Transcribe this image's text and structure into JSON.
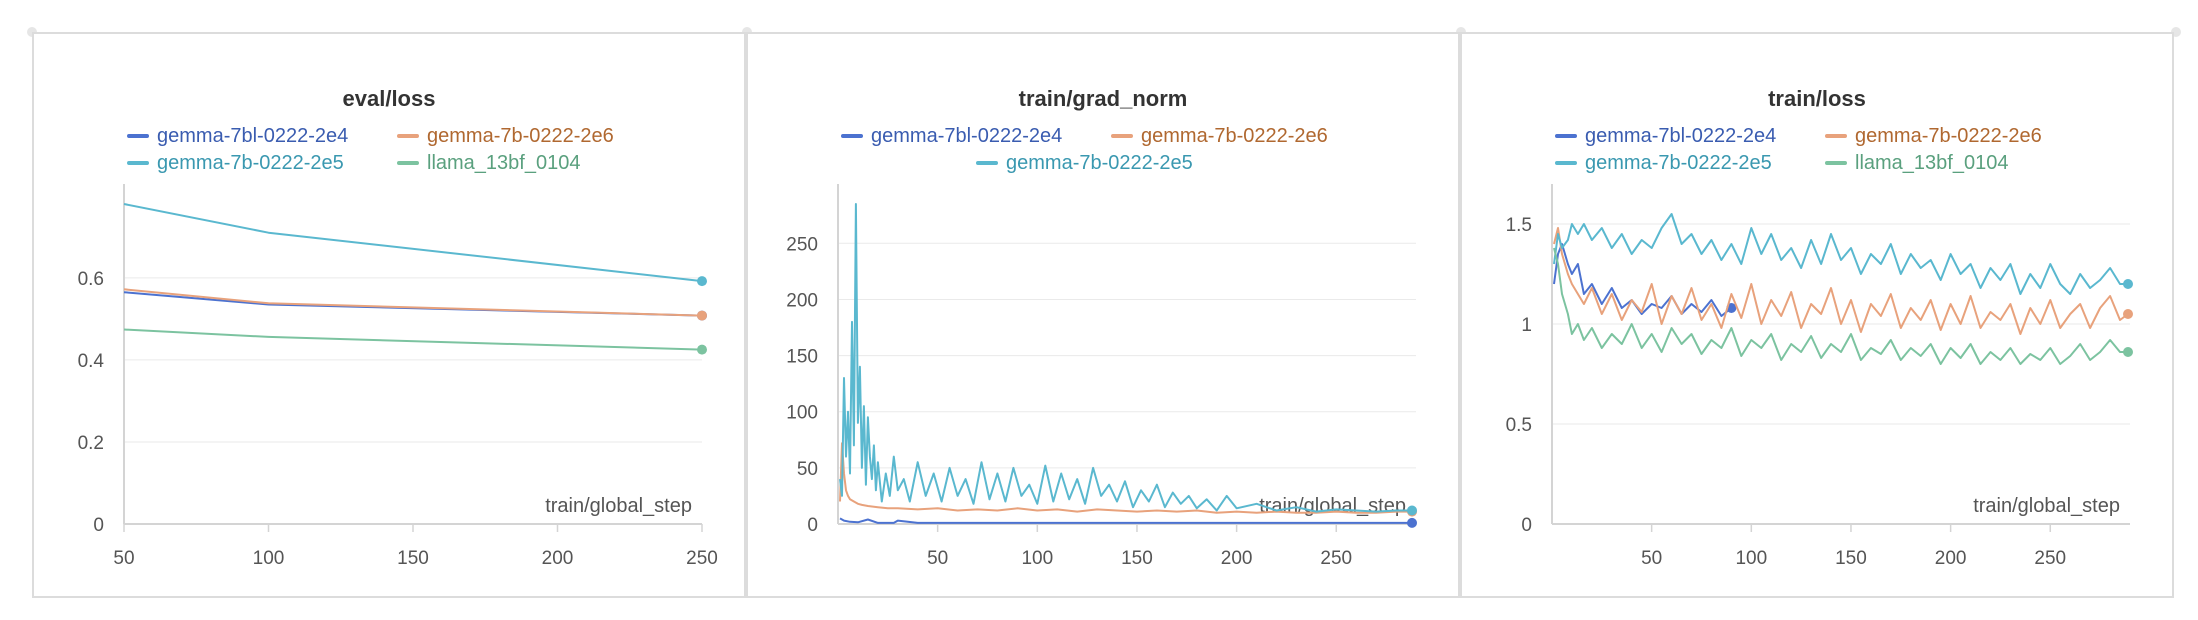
{
  "colors": {
    "gemma_2e4": "#4c72d0",
    "gemma_2e6": "#e8a27c",
    "gemma_2e5": "#5ab8cf",
    "llama": "#7cc3a0",
    "grid": "#eaeaea",
    "axis": "#d4d4d4",
    "tick_text": "#555555",
    "title_text": "#333333"
  },
  "legend_label_colors": {
    "gemma-7bl-0222-2e4": "#3a5cb0",
    "gemma-7b-0222-2e6": "#b06830",
    "gemma-7b-0222-2e5": "#3a98b0",
    "llama_13bf_0104": "#5aa07e"
  },
  "chart_data": [
    {
      "type": "line",
      "title": "eval/loss",
      "xlabel": "train/global_step",
      "ylabel": "",
      "xlim": [
        50,
        250
      ],
      "ylim": [
        0,
        0.78
      ],
      "xticks": [
        "50",
        "100",
        "150",
        "200",
        "250"
      ],
      "yticks": [
        "0",
        "0.2",
        "0.4",
        "0.6"
      ],
      "grid": true,
      "legend": "top",
      "series": [
        {
          "name": "gemma-7bl-0222-2e4",
          "color": "gemma_2e4",
          "x": [
            50,
            100,
            250
          ],
          "y": [
            0.565,
            0.535,
            0.508
          ]
        },
        {
          "name": "gemma-7b-0222-2e6",
          "color": "gemma_2e6",
          "x": [
            50,
            100,
            250
          ],
          "y": [
            0.572,
            0.538,
            0.508
          ]
        },
        {
          "name": "gemma-7b-0222-2e5",
          "color": "gemma_2e5",
          "x": [
            50,
            100,
            250
          ],
          "y": [
            0.78,
            0.71,
            0.592
          ]
        },
        {
          "name": "llama_13bf_0104",
          "color": "llama",
          "x": [
            50,
            100,
            250
          ],
          "y": [
            0.474,
            0.456,
            0.425
          ]
        }
      ]
    },
    {
      "type": "line",
      "title": "train/grad_norm",
      "xlabel": "train/global_step",
      "ylabel": "",
      "xlim": [
        0,
        290
      ],
      "ylim": [
        0,
        285
      ],
      "xticks": [
        "50",
        "100",
        "150",
        "200",
        "250"
      ],
      "yticks": [
        "0",
        "50",
        "100",
        "150",
        "200",
        "250"
      ],
      "grid": true,
      "legend": "top",
      "series": [
        {
          "name": "gemma-7bl-0222-2e4",
          "color": "gemma_2e4",
          "x": [
            1,
            3,
            6,
            10,
            15,
            20,
            25,
            28,
            30,
            40,
            60,
            80,
            100,
            120,
            140,
            160,
            180,
            200,
            215,
            230,
            250,
            270,
            288
          ],
          "y": [
            5,
            3,
            2,
            1.5,
            4,
            1,
            1,
            1,
            3,
            1,
            1,
            1,
            1,
            1,
            1,
            1,
            1,
            1,
            1,
            1,
            1,
            1,
            1
          ]
        },
        {
          "name": "gemma-7b-0222-2e6",
          "color": "gemma_2e6",
          "x": [
            1,
            2,
            3,
            4,
            5,
            6,
            8,
            10,
            12,
            15,
            20,
            25,
            30,
            40,
            50,
            60,
            70,
            80,
            90,
            100,
            110,
            120,
            130,
            140,
            150,
            160,
            170,
            180,
            190,
            200,
            210,
            220,
            230,
            240,
            250,
            260,
            270,
            280,
            288
          ],
          "y": [
            20,
            72,
            45,
            30,
            25,
            22,
            20,
            18,
            17,
            16,
            15,
            14,
            14,
            13,
            14,
            12,
            13,
            12,
            14,
            12,
            13,
            11,
            13,
            12,
            11,
            12,
            11,
            12,
            10,
            11,
            10,
            11,
            10,
            10,
            11,
            10,
            10,
            11,
            11
          ]
        },
        {
          "name": "gemma-7b-0222-2e5",
          "color": "gemma_2e5",
          "x": [
            1,
            2,
            3,
            4,
            5,
            6,
            7,
            8,
            9,
            10,
            11,
            12,
            13,
            14,
            15,
            16,
            17,
            18,
            19,
            20,
            22,
            24,
            26,
            28,
            30,
            33,
            36,
            40,
            44,
            48,
            52,
            56,
            60,
            64,
            68,
            72,
            76,
            80,
            84,
            88,
            92,
            96,
            100,
            104,
            108,
            112,
            116,
            120,
            124,
            128,
            132,
            136,
            140,
            144,
            148,
            152,
            156,
            160,
            164,
            168,
            172,
            176,
            180,
            185,
            190,
            195,
            200,
            210,
            220,
            230,
            240,
            250,
            260,
            270,
            280,
            288
          ],
          "y": [
            40,
            25,
            130,
            60,
            100,
            45,
            180,
            70,
            285,
            90,
            140,
            50,
            105,
            35,
            95,
            60,
            40,
            70,
            30,
            55,
            20,
            45,
            25,
            60,
            30,
            40,
            20,
            55,
            25,
            45,
            20,
            50,
            25,
            40,
            18,
            55,
            22,
            45,
            20,
            50,
            25,
            35,
            18,
            52,
            20,
            45,
            22,
            40,
            18,
            50,
            25,
            35,
            20,
            38,
            15,
            30,
            20,
            35,
            15,
            28,
            18,
            25,
            14,
            22,
            12,
            25,
            14,
            18,
            12,
            15,
            11,
            13,
            12,
            11,
            12,
            12
          ]
        }
      ]
    },
    {
      "type": "line",
      "title": "train/loss",
      "xlabel": "train/global_step",
      "ylabel": "",
      "xlim": [
        0,
        290
      ],
      "ylim": [
        0,
        1.6
      ],
      "xticks": [
        "50",
        "100",
        "150",
        "200",
        "250"
      ],
      "yticks": [
        "0",
        "0.5",
        "1",
        "1.5"
      ],
      "grid": true,
      "legend": "top",
      "series": [
        {
          "name": "gemma-7bl-0222-2e4",
          "color": "gemma_2e4",
          "x": [
            1,
            3,
            5,
            8,
            10,
            13,
            16,
            20,
            25,
            30,
            35,
            40,
            45,
            50,
            55,
            60,
            65,
            70,
            75,
            80,
            85,
            90
          ],
          "y": [
            1.2,
            1.35,
            1.4,
            1.3,
            1.25,
            1.3,
            1.15,
            1.2,
            1.1,
            1.18,
            1.08,
            1.12,
            1.05,
            1.1,
            1.08,
            1.14,
            1.05,
            1.1,
            1.06,
            1.12,
            1.04,
            1.08
          ]
        },
        {
          "name": "gemma-7b-0222-2e6",
          "color": "gemma_2e6",
          "x": [
            1,
            3,
            5,
            8,
            10,
            13,
            16,
            20,
            25,
            30,
            35,
            40,
            45,
            50,
            55,
            60,
            65,
            70,
            75,
            80,
            85,
            90,
            95,
            100,
            105,
            110,
            115,
            120,
            125,
            130,
            135,
            140,
            145,
            150,
            155,
            160,
            165,
            170,
            175,
            180,
            185,
            190,
            195,
            200,
            205,
            210,
            215,
            220,
            225,
            230,
            235,
            240,
            245,
            250,
            255,
            260,
            265,
            270,
            275,
            280,
            285,
            289
          ],
          "y": [
            1.4,
            1.48,
            1.35,
            1.25,
            1.2,
            1.15,
            1.1,
            1.18,
            1.05,
            1.15,
            1.02,
            1.12,
            1.06,
            1.2,
            1.0,
            1.14,
            1.05,
            1.18,
            1.02,
            1.1,
            0.98,
            1.15,
            1.03,
            1.2,
            1.0,
            1.12,
            1.04,
            1.16,
            0.98,
            1.1,
            1.05,
            1.18,
            1.0,
            1.12,
            0.96,
            1.1,
            1.04,
            1.15,
            0.98,
            1.08,
            1.02,
            1.12,
            0.97,
            1.1,
            1.0,
            1.14,
            0.98,
            1.06,
            1.02,
            1.1,
            0.95,
            1.08,
            1.0,
            1.12,
            0.98,
            1.05,
            1.1,
            0.98,
            1.08,
            1.14,
            1.02,
            1.05
          ]
        },
        {
          "name": "gemma-7b-0222-2e5",
          "color": "gemma_2e5",
          "x": [
            1,
            3,
            5,
            8,
            10,
            13,
            16,
            20,
            25,
            30,
            35,
            40,
            45,
            50,
            55,
            60,
            65,
            70,
            75,
            80,
            85,
            90,
            95,
            100,
            105,
            110,
            115,
            120,
            125,
            130,
            135,
            140,
            145,
            150,
            155,
            160,
            165,
            170,
            175,
            180,
            185,
            190,
            195,
            200,
            205,
            210,
            215,
            220,
            225,
            230,
            235,
            240,
            245,
            250,
            255,
            260,
            265,
            270,
            275,
            280,
            285,
            289
          ],
          "y": [
            1.3,
            1.45,
            1.38,
            1.42,
            1.5,
            1.45,
            1.5,
            1.42,
            1.48,
            1.38,
            1.45,
            1.35,
            1.42,
            1.38,
            1.48,
            1.55,
            1.4,
            1.45,
            1.35,
            1.42,
            1.32,
            1.4,
            1.3,
            1.48,
            1.35,
            1.45,
            1.32,
            1.38,
            1.28,
            1.42,
            1.3,
            1.45,
            1.32,
            1.38,
            1.25,
            1.35,
            1.3,
            1.4,
            1.25,
            1.35,
            1.28,
            1.32,
            1.22,
            1.35,
            1.25,
            1.3,
            1.18,
            1.28,
            1.22,
            1.3,
            1.15,
            1.25,
            1.18,
            1.3,
            1.2,
            1.15,
            1.25,
            1.18,
            1.22,
            1.28,
            1.2,
            1.2
          ]
        },
        {
          "name": "llama_13bf_0104",
          "color": "llama",
          "x": [
            1,
            3,
            5,
            8,
            10,
            13,
            16,
            20,
            25,
            30,
            35,
            40,
            45,
            50,
            55,
            60,
            65,
            70,
            75,
            80,
            85,
            90,
            95,
            100,
            105,
            110,
            115,
            120,
            125,
            130,
            135,
            140,
            145,
            150,
            155,
            160,
            165,
            170,
            175,
            180,
            185,
            190,
            195,
            200,
            205,
            210,
            215,
            220,
            225,
            230,
            235,
            240,
            245,
            250,
            255,
            260,
            265,
            270,
            275,
            280,
            285,
            289
          ],
          "y": [
            1.38,
            1.3,
            1.15,
            1.05,
            0.95,
            1.0,
            0.92,
            0.98,
            0.88,
            0.95,
            0.9,
            1.0,
            0.88,
            0.95,
            0.86,
            0.98,
            0.9,
            0.95,
            0.85,
            0.92,
            0.88,
            0.98,
            0.84,
            0.92,
            0.88,
            0.95,
            0.82,
            0.9,
            0.86,
            0.94,
            0.83,
            0.9,
            0.86,
            0.95,
            0.82,
            0.88,
            0.85,
            0.92,
            0.82,
            0.88,
            0.84,
            0.9,
            0.8,
            0.88,
            0.83,
            0.9,
            0.8,
            0.86,
            0.82,
            0.88,
            0.8,
            0.85,
            0.82,
            0.88,
            0.8,
            0.84,
            0.9,
            0.82,
            0.86,
            0.92,
            0.86,
            0.86
          ]
        }
      ]
    }
  ]
}
